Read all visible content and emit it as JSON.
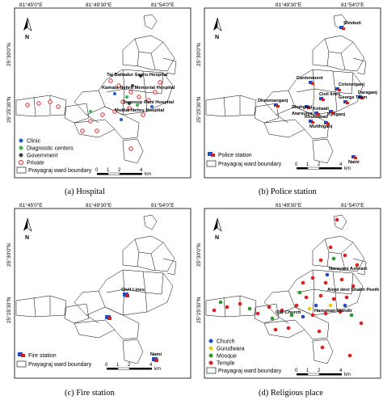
{
  "coords": {
    "x_top_left": [
      "81°45'0\"E",
      "81°49'30\"E",
      "81°54'0\"E"
    ],
    "x_top_right": [
      "81°49'30\"E",
      "81°54'0\"E"
    ],
    "x_bottom_left": [
      "81°45'0\"E",
      "81°49'30\"E",
      "81°54'0\"E"
    ],
    "x_bottom_right": [
      "81°49'30\"E",
      "81°54'0\"E"
    ],
    "y_top": [
      "25°30'0\"N",
      "25°25'30\"N"
    ],
    "y_bottom": [
      "25°30'0\"N",
      "25°25'30\"N"
    ]
  },
  "scale": {
    "ticks": [
      "0",
      "1",
      "2",
      "4"
    ],
    "unit": "km"
  },
  "north_symbol": "N",
  "panels": [
    {
      "caption": "(a)   Hospital",
      "labels": [
        "Taj Bahadur Sapru Hospital",
        "Kamala Nehru Memorial Hospital",
        "Swaroop Rani Hospital",
        "Motilal Nehru Hospital"
      ],
      "legend": [
        "Clinic",
        "Diagnostic centers",
        "Government",
        "Private",
        "Prayagraj ward boundary"
      ],
      "legend_colors": {
        "Clinic": "#1f5fbf",
        "Diagnostic centers": "#3cb34a",
        "Government": "#444444",
        "Private": "#e02020"
      }
    },
    {
      "caption": "(b)  Police station",
      "labels": [
        "Shivkuti",
        "Cantonment",
        "Colonelganj",
        "Civil lines",
        "George Town",
        "Dhoomanganj",
        "Daraganj",
        "Shahganj",
        "Atarsuiya",
        "Kotwali",
        "Khuldabad",
        "Kydganj",
        "Mutthiganj",
        "Naini"
      ],
      "legend": [
        "Police station",
        "Prayagraj ward boundary"
      ]
    },
    {
      "caption": "(c)  Fire station",
      "labels": [
        "Civil Lines",
        "Naini"
      ],
      "legend": [
        "Fire station",
        "Prayagraj ward boundary"
      ]
    },
    {
      "caption": "(d)  Religious place",
      "labels": [
        "Narayani Ashram",
        "Alopi devi Shakti Peeth",
        "Old Church",
        "Hanuman Mandir"
      ],
      "legend": [
        "Church",
        "Gurudwara",
        "Mosque",
        "Temple",
        "Prayagraj ward boundary"
      ],
      "legend_colors": {
        "Church": "#1f4fbf",
        "Gurudwara": "#e6d000",
        "Mosque": "#2a9a2a",
        "Temple": "#e02020"
      }
    }
  ]
}
